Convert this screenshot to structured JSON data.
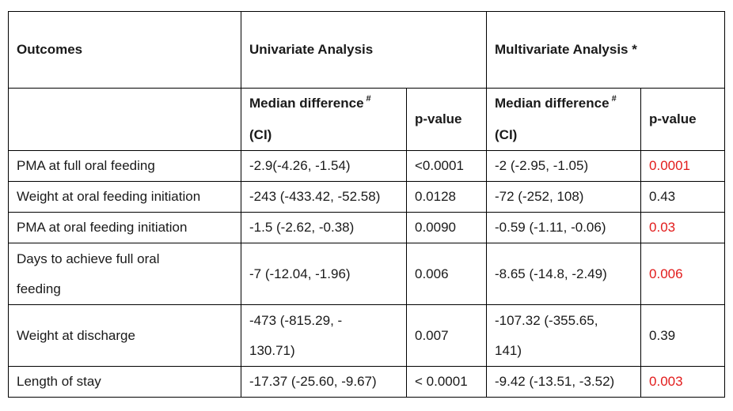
{
  "header": {
    "outcomes": "Outcomes",
    "univariate": "Univariate Analysis",
    "multivariate": "Multivariate Analysis *"
  },
  "subheader": {
    "median_line1": "Median difference",
    "median_sup": "#",
    "median_line2": "(CI)",
    "pvalue": "p-value"
  },
  "rows": [
    {
      "outcome": [
        "PMA at full oral feeding"
      ],
      "uni_md": [
        "-2.9(-4.26, -1.54)"
      ],
      "uni_p": "<0.0001",
      "multi_md": [
        "-2 (-2.95, -1.05)"
      ],
      "multi_p": "0.0001"
    },
    {
      "outcome": [
        "Weight at oral feeding initiation"
      ],
      "uni_md": [
        "-243 (-433.42, -52.58)"
      ],
      "uni_p": "0.0128",
      "multi_md": [
        "-72 (-252, 108)"
      ],
      "multi_p": "0.43"
    },
    {
      "outcome": [
        "PMA at oral feeding initiation"
      ],
      "uni_md": [
        "-1.5 (-2.62, -0.38)"
      ],
      "uni_p": "0.0090",
      "multi_md": [
        "-0.59 (-1.11, -0.06)"
      ],
      "multi_p": "0.03"
    },
    {
      "outcome": [
        "Days to achieve full oral",
        "feeding"
      ],
      "uni_md": [
        "-7 (-12.04, -1.96)"
      ],
      "uni_p": "0.006",
      "multi_md": [
        "-8.65 (-14.8, -2.49)"
      ],
      "multi_p": "0.006"
    },
    {
      "outcome": [
        "Weight at discharge"
      ],
      "uni_md": [
        "-473 (-815.29, -",
        "130.71)"
      ],
      "uni_p": "0.007",
      "multi_md": [
        "-107.32 (-355.65,",
        "141)"
      ],
      "multi_p": "0.39"
    },
    {
      "outcome": [
        "Length of stay"
      ],
      "uni_md": [
        "-17.37 (-25.60, -9.67)"
      ],
      "uni_p": "< 0.0001",
      "multi_md": [
        "-9.42 (-13.51, -3.52)"
      ],
      "multi_p": "0.003"
    }
  ],
  "colors": {
    "significant": "#e21b1b",
    "text": "#1a1a1a",
    "border": "#000000"
  }
}
